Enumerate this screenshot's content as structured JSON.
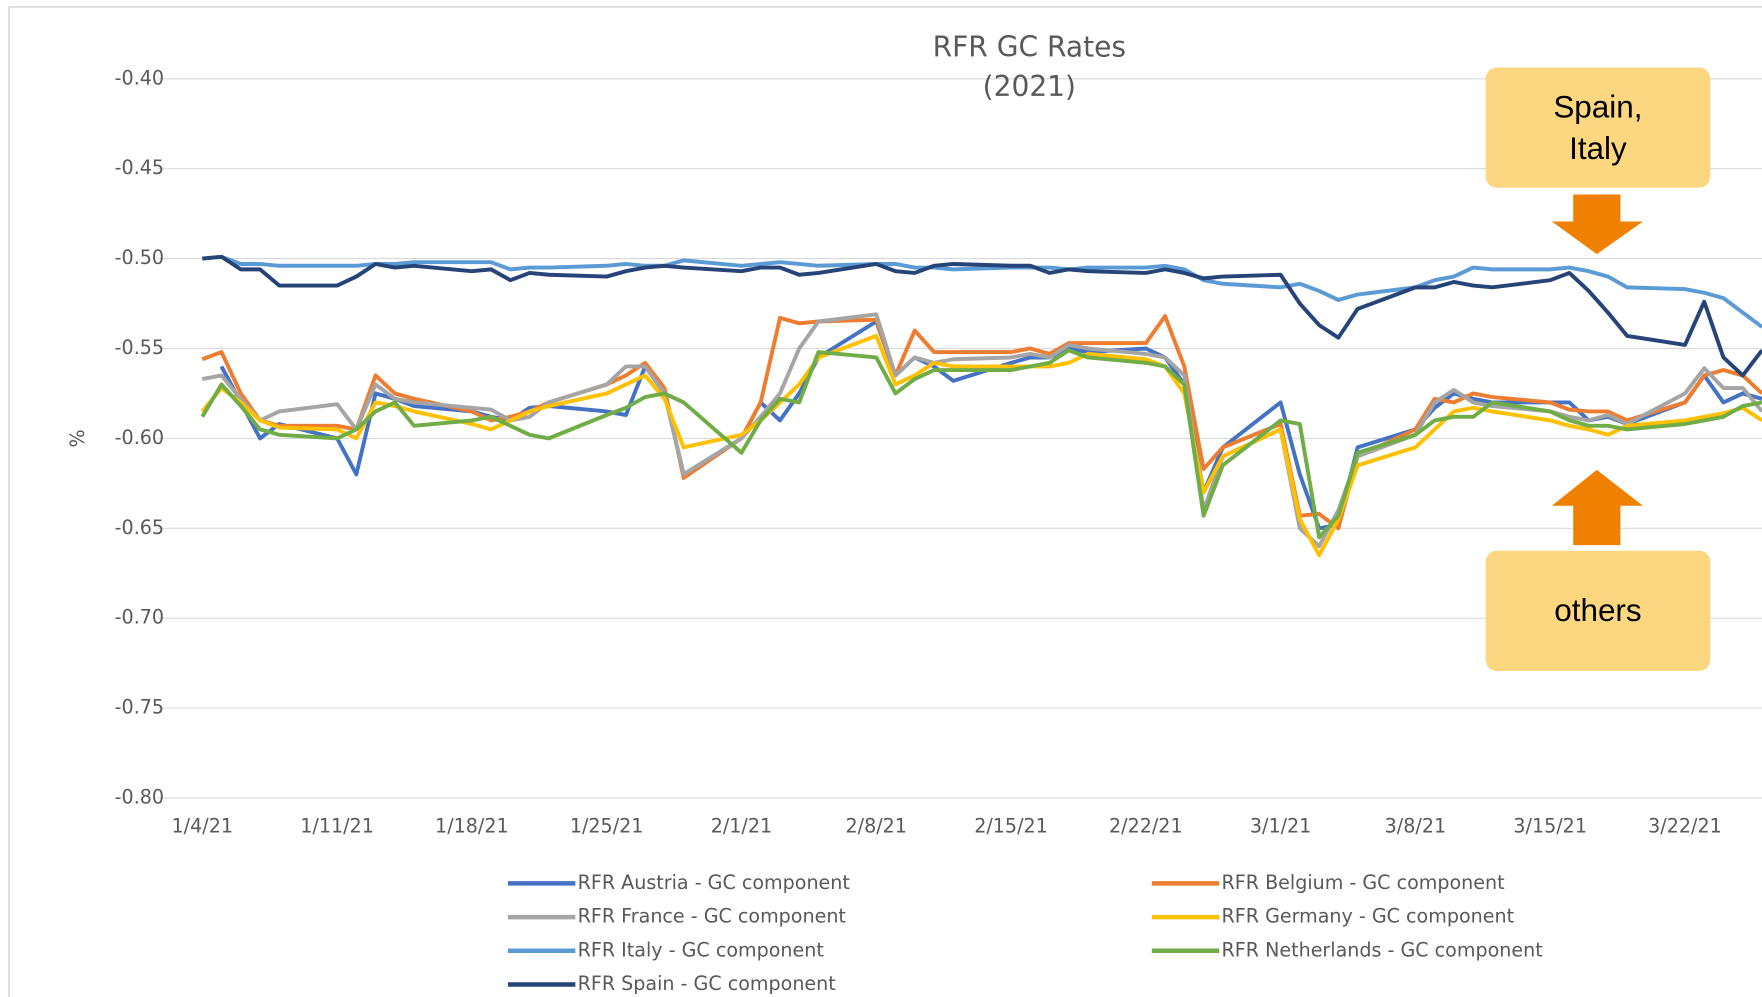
{
  "chart_data": {
    "type": "line",
    "title": "RFR GC Rates",
    "subtitle": "(2021)",
    "y_label": "%",
    "x": [
      "1/4/21",
      "1/5/21",
      "1/6/21",
      "1/7/21",
      "1/8/21",
      "1/11/21",
      "1/12/21",
      "1/13/21",
      "1/14/21",
      "1/15/21",
      "1/18/21",
      "1/19/21",
      "1/20/21",
      "1/21/21",
      "1/22/21",
      "1/25/21",
      "1/26/21",
      "1/27/21",
      "1/28/21",
      "1/29/21",
      "2/1/21",
      "2/2/21",
      "2/3/21",
      "2/4/21",
      "2/5/21",
      "2/8/21",
      "2/9/21",
      "2/10/21",
      "2/11/21",
      "2/12/21",
      "2/15/21",
      "2/16/21",
      "2/17/21",
      "2/18/21",
      "2/19/21",
      "2/22/21",
      "2/23/21",
      "2/24/21",
      "2/25/21",
      "2/26/21",
      "3/1/21",
      "3/2/21",
      "3/3/21",
      "3/4/21",
      "3/5/21",
      "3/8/21",
      "3/9/21",
      "3/10/21",
      "3/11/21",
      "3/12/21",
      "3/15/21",
      "3/16/21",
      "3/17/21",
      "3/18/21",
      "3/19/21",
      "3/22/21",
      "3/23/21",
      "3/24/21",
      "3/25/21",
      "3/26/21"
    ],
    "xlim": [
      "1/4/21",
      "3/26/21"
    ],
    "xticks": [
      "1/4/21",
      "1/11/21",
      "1/18/21",
      "1/25/21",
      "2/1/21",
      "2/8/21",
      "2/15/21",
      "2/22/21",
      "3/1/21",
      "3/8/21",
      "3/15/21",
      "3/22/21"
    ],
    "ylim": [
      -0.8,
      -0.4
    ],
    "yticks": [
      {
        "value": -0.8,
        "label": "-0.80"
      },
      {
        "value": -0.75,
        "label": "-0.75"
      },
      {
        "value": -0.7,
        "label": "-0.70"
      },
      {
        "value": -0.65,
        "label": "-0.65"
      },
      {
        "value": -0.6,
        "label": "-0.60"
      },
      {
        "value": -0.55,
        "label": "-0.55"
      },
      {
        "value": -0.5,
        "label": "-0.50"
      },
      {
        "value": -0.45,
        "label": "-0.45"
      },
      {
        "value": -0.4,
        "label": "-0.40"
      }
    ],
    "grid": true,
    "legend": "bottom",
    "series": [
      {
        "name": "RFR Austria - GC component",
        "color": "#4472c4",
        "values": [
          null,
          -0.56,
          -0.58,
          -0.6,
          -0.592,
          -0.6,
          -0.62,
          -0.575,
          -0.578,
          -0.582,
          -0.585,
          -0.588,
          -0.59,
          -0.583,
          -0.582,
          -0.585,
          -0.587,
          -0.56,
          -0.575,
          -0.62,
          -0.6,
          -0.58,
          -0.59,
          -0.575,
          -0.555,
          -0.535,
          -0.565,
          -0.555,
          -0.56,
          -0.568,
          -0.558,
          -0.555,
          -0.555,
          -0.55,
          -0.552,
          -0.55,
          -0.555,
          -0.57,
          -0.63,
          -0.605,
          -0.58,
          -0.62,
          -0.65,
          -0.648,
          -0.605,
          -0.595,
          -0.583,
          -0.575,
          -0.578,
          -0.58,
          -0.58,
          -0.58,
          -0.59,
          -0.588,
          -0.592,
          -0.58,
          -0.565,
          -0.58,
          -0.575,
          -0.578
        ]
      },
      {
        "name": "RFR Belgium - GC component",
        "color": "#ed7d31",
        "values": [
          -0.556,
          -0.552,
          -0.575,
          -0.59,
          -0.593,
          -0.593,
          -0.595,
          -0.565,
          -0.575,
          -0.578,
          -0.585,
          -0.59,
          -0.588,
          -0.585,
          -0.58,
          -0.57,
          -0.565,
          -0.558,
          -0.572,
          -0.622,
          -0.6,
          -0.58,
          -0.533,
          -0.536,
          -0.535,
          -0.534,
          -0.565,
          -0.54,
          -0.552,
          -0.552,
          -0.552,
          -0.55,
          -0.553,
          -0.547,
          -0.547,
          -0.547,
          -0.532,
          -0.56,
          -0.617,
          -0.605,
          -0.592,
          -0.643,
          -0.642,
          -0.65,
          -0.61,
          -0.595,
          -0.578,
          -0.58,
          -0.575,
          -0.577,
          -0.58,
          -0.584,
          -0.585,
          -0.585,
          -0.59,
          -0.58,
          -0.565,
          -0.562,
          -0.565,
          -0.575
        ]
      },
      {
        "name": "RFR France - GC component",
        "color": "#a5a5a5",
        "values": [
          -0.567,
          -0.565,
          -0.578,
          -0.59,
          -0.585,
          -0.581,
          -0.595,
          -0.57,
          -0.578,
          -0.58,
          -0.583,
          -0.584,
          -0.59,
          -0.588,
          -0.58,
          -0.57,
          -0.56,
          -0.56,
          -0.575,
          -0.62,
          -0.6,
          -0.588,
          -0.575,
          -0.55,
          -0.535,
          -0.531,
          -0.565,
          -0.555,
          -0.558,
          -0.556,
          -0.555,
          -0.553,
          -0.555,
          -0.548,
          -0.55,
          -0.553,
          -0.555,
          -0.565,
          -0.64,
          -0.61,
          -0.595,
          -0.65,
          -0.66,
          -0.64,
          -0.61,
          -0.598,
          -0.58,
          -0.573,
          -0.58,
          -0.582,
          -0.585,
          -0.588,
          -0.59,
          -0.587,
          -0.592,
          -0.575,
          -0.561,
          -0.572,
          -0.572,
          -0.585
        ]
      },
      {
        "name": "RFR Germany - GC component",
        "color": "#ffc000",
        "values": [
          -0.585,
          -0.572,
          -0.58,
          -0.59,
          -0.594,
          -0.595,
          -0.6,
          -0.58,
          -0.582,
          -0.585,
          -0.592,
          -0.595,
          -0.59,
          -0.585,
          -0.582,
          -0.575,
          -0.57,
          -0.565,
          -0.578,
          -0.605,
          -0.598,
          -0.59,
          -0.58,
          -0.57,
          -0.555,
          -0.543,
          -0.57,
          -0.565,
          -0.558,
          -0.56,
          -0.56,
          -0.56,
          -0.56,
          -0.558,
          -0.553,
          -0.556,
          -0.56,
          -0.575,
          -0.63,
          -0.61,
          -0.595,
          -0.645,
          -0.665,
          -0.645,
          -0.615,
          -0.605,
          -0.595,
          -0.585,
          -0.583,
          -0.585,
          -0.59,
          -0.593,
          -0.595,
          -0.598,
          -0.593,
          -0.59,
          -0.588,
          -0.586,
          -0.583,
          -0.59
        ]
      },
      {
        "name": "RFR Italy - GC component",
        "color": "#5b9bd5",
        "values": [
          -0.5,
          -0.499,
          -0.503,
          -0.503,
          -0.504,
          -0.504,
          -0.504,
          -0.503,
          -0.503,
          -0.502,
          -0.502,
          -0.502,
          -0.506,
          -0.505,
          -0.505,
          -0.504,
          -0.503,
          -0.504,
          -0.504,
          -0.501,
          -0.504,
          -0.503,
          -0.502,
          -0.503,
          -0.504,
          -0.503,
          -0.503,
          -0.505,
          -0.505,
          -0.506,
          -0.505,
          -0.505,
          -0.505,
          -0.506,
          -0.505,
          -0.505,
          -0.504,
          -0.506,
          -0.512,
          -0.514,
          -0.516,
          -0.514,
          -0.518,
          -0.523,
          -0.52,
          -0.516,
          -0.512,
          -0.51,
          -0.505,
          -0.506,
          -0.506,
          -0.505,
          -0.507,
          -0.51,
          -0.516,
          -0.517,
          -0.519,
          -0.522,
          -0.53,
          -0.538
        ]
      },
      {
        "name": "RFR Netherlands - GC component",
        "color": "#70ad47",
        "values": [
          -0.588,
          -0.57,
          -0.582,
          -0.595,
          -0.598,
          -0.6,
          -0.595,
          -0.585,
          -0.58,
          -0.593,
          -0.59,
          -0.588,
          -0.593,
          -0.598,
          -0.6,
          -0.587,
          -0.583,
          -0.577,
          -0.575,
          -0.58,
          -0.608,
          -0.59,
          -0.578,
          -0.58,
          -0.552,
          -0.555,
          -0.575,
          -0.567,
          -0.562,
          -0.562,
          -0.562,
          -0.56,
          -0.558,
          -0.551,
          -0.555,
          -0.558,
          -0.56,
          -0.57,
          -0.643,
          -0.615,
          -0.59,
          -0.592,
          -0.655,
          -0.643,
          -0.608,
          -0.598,
          -0.59,
          -0.588,
          -0.588,
          -0.58,
          -0.585,
          -0.59,
          -0.593,
          -0.593,
          -0.595,
          -0.592,
          -0.59,
          -0.588,
          -0.582,
          -0.58
        ]
      },
      {
        "name": "RFR Spain - GC component",
        "color": "#264478",
        "values": [
          -0.5,
          -0.499,
          -0.506,
          -0.506,
          -0.515,
          -0.515,
          -0.51,
          -0.503,
          -0.505,
          -0.504,
          -0.507,
          -0.506,
          -0.512,
          -0.508,
          -0.509,
          -0.51,
          -0.507,
          -0.505,
          -0.504,
          -0.505,
          -0.507,
          -0.505,
          -0.505,
          -0.509,
          -0.508,
          -0.503,
          -0.507,
          -0.508,
          -0.504,
          -0.503,
          -0.504,
          -0.504,
          -0.508,
          -0.506,
          -0.507,
          -0.508,
          -0.506,
          -0.508,
          -0.511,
          -0.51,
          -0.509,
          -0.525,
          -0.537,
          -0.544,
          -0.528,
          -0.516,
          -0.516,
          -0.513,
          -0.515,
          -0.516,
          -0.512,
          -0.508,
          -0.518,
          -0.53,
          -0.543,
          -0.548,
          -0.524,
          -0.555,
          -0.565,
          -0.551
        ]
      }
    ],
    "annotations": [
      {
        "lines": [
          "Spain,",
          "Italy"
        ]
      },
      {
        "lines": [
          "others"
        ]
      }
    ]
  }
}
